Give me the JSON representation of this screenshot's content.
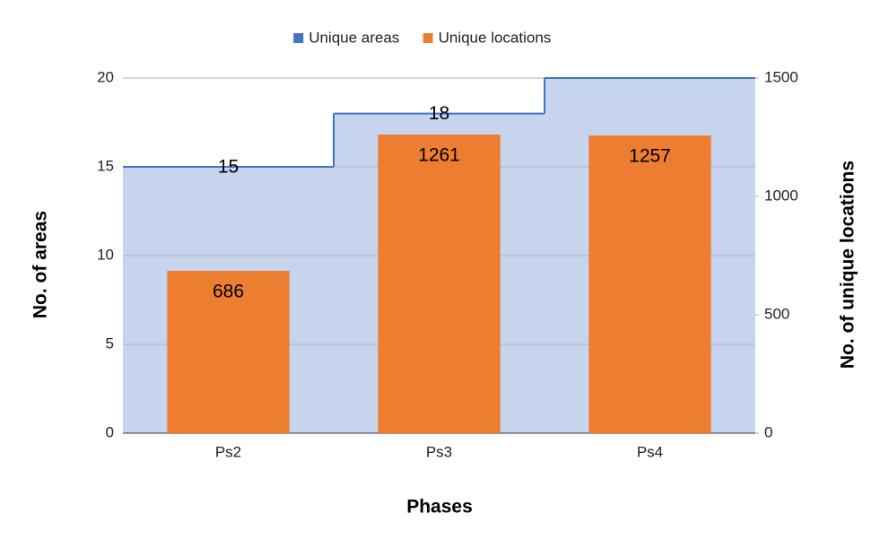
{
  "chart_data": {
    "type": "bar-stepped-area",
    "categories": [
      "Ps2",
      "Ps3",
      "Ps4"
    ],
    "x_label": "Phases",
    "y_label": "No. of areas",
    "y2_label": "No. of unique locations",
    "ylim": [
      0,
      20
    ],
    "yticks": [
      0,
      5,
      10,
      15,
      20
    ],
    "y2lim": [
      0,
      1500
    ],
    "y2ticks": [
      0,
      500,
      1000,
      1500
    ],
    "grid": true,
    "legend": "top",
    "series": [
      {
        "name": "Unique areas",
        "type": "stepped-area",
        "color": "#4472c4",
        "fill": "#c6d4ee",
        "values": [
          15,
          18,
          20
        ],
        "value_labels": [
          "15",
          "18",
          null
        ]
      },
      {
        "name": "Unique locations",
        "type": "bar",
        "axis": "y2",
        "color": "#ed7d31",
        "values": [
          686,
          1261,
          1257
        ]
      }
    ]
  }
}
